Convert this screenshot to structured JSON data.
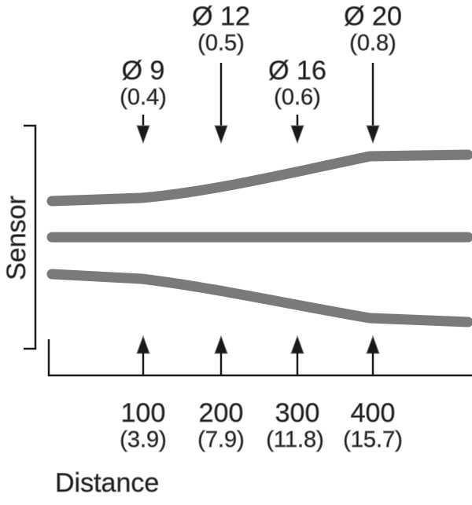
{
  "sensor_label": "Sensor",
  "distance_label": "Distance",
  "colors": {
    "beam": "#7a7a7a",
    "ink": "#1a1a1a",
    "background": "#ffffff"
  },
  "beam_diameters": [
    {
      "diameter": "Ø 9",
      "inch": "(0.4)"
    },
    {
      "diameter": "Ø 12",
      "inch": "(0.5)"
    },
    {
      "diameter": "Ø 16",
      "inch": "(0.6)"
    },
    {
      "diameter": "Ø 20",
      "inch": "(0.8)"
    }
  ],
  "distances": [
    {
      "value": "100",
      "inch": "(3.9)"
    },
    {
      "value": "200",
      "inch": "(7.9)"
    },
    {
      "value": "300",
      "inch": "(11.8)"
    },
    {
      "value": "400",
      "inch": "(15.7)"
    }
  ]
}
